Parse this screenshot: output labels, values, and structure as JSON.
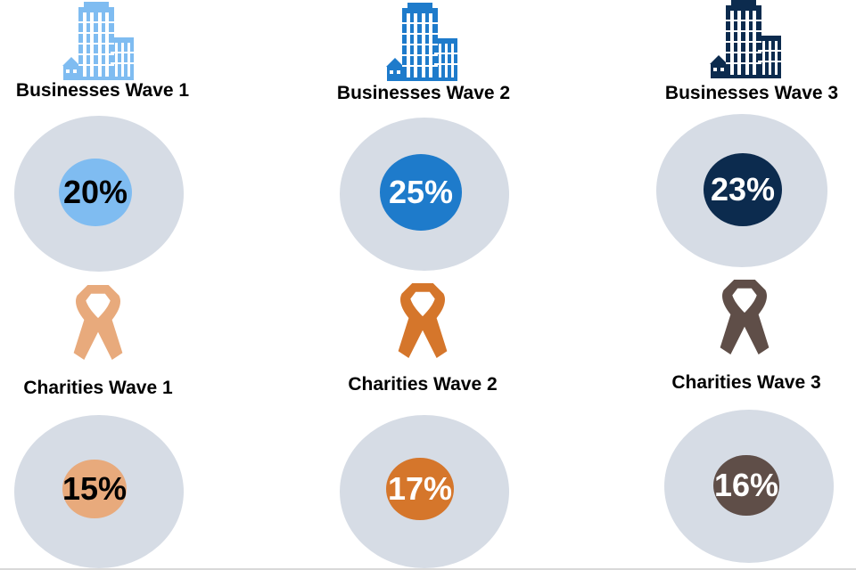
{
  "chart_data": {
    "type": "infographic",
    "title": "",
    "items": [
      {
        "group": "Businesses",
        "label": "Businesses Wave 1",
        "value": 20,
        "display": "20%",
        "color": "#7fbcf1",
        "text_color": "#000000",
        "icon": "office-building-icon"
      },
      {
        "group": "Businesses",
        "label": "Businesses Wave 2",
        "value": 25,
        "display": "25%",
        "color": "#1e7bcb",
        "text_color": "#ffffff",
        "icon": "office-building-icon"
      },
      {
        "group": "Businesses",
        "label": "Businesses Wave 3",
        "value": 23,
        "display": "23%",
        "color": "#0c2b4e",
        "text_color": "#ffffff",
        "icon": "office-building-icon"
      },
      {
        "group": "Charities",
        "label": "Charities Wave 1",
        "value": 15,
        "display": "15%",
        "color": "#e8aa7c",
        "text_color": "#000000",
        "icon": "awareness-ribbon-icon"
      },
      {
        "group": "Charities",
        "label": "Charities Wave 2",
        "value": 17,
        "display": "17%",
        "color": "#d5762b",
        "text_color": "#ffffff",
        "icon": "awareness-ribbon-icon"
      },
      {
        "group": "Charities",
        "label": "Charities Wave 3",
        "value": 16,
        "display": "16%",
        "color": "#5f4e48",
        "text_color": "#ffffff",
        "icon": "awareness-ribbon-icon"
      }
    ]
  }
}
